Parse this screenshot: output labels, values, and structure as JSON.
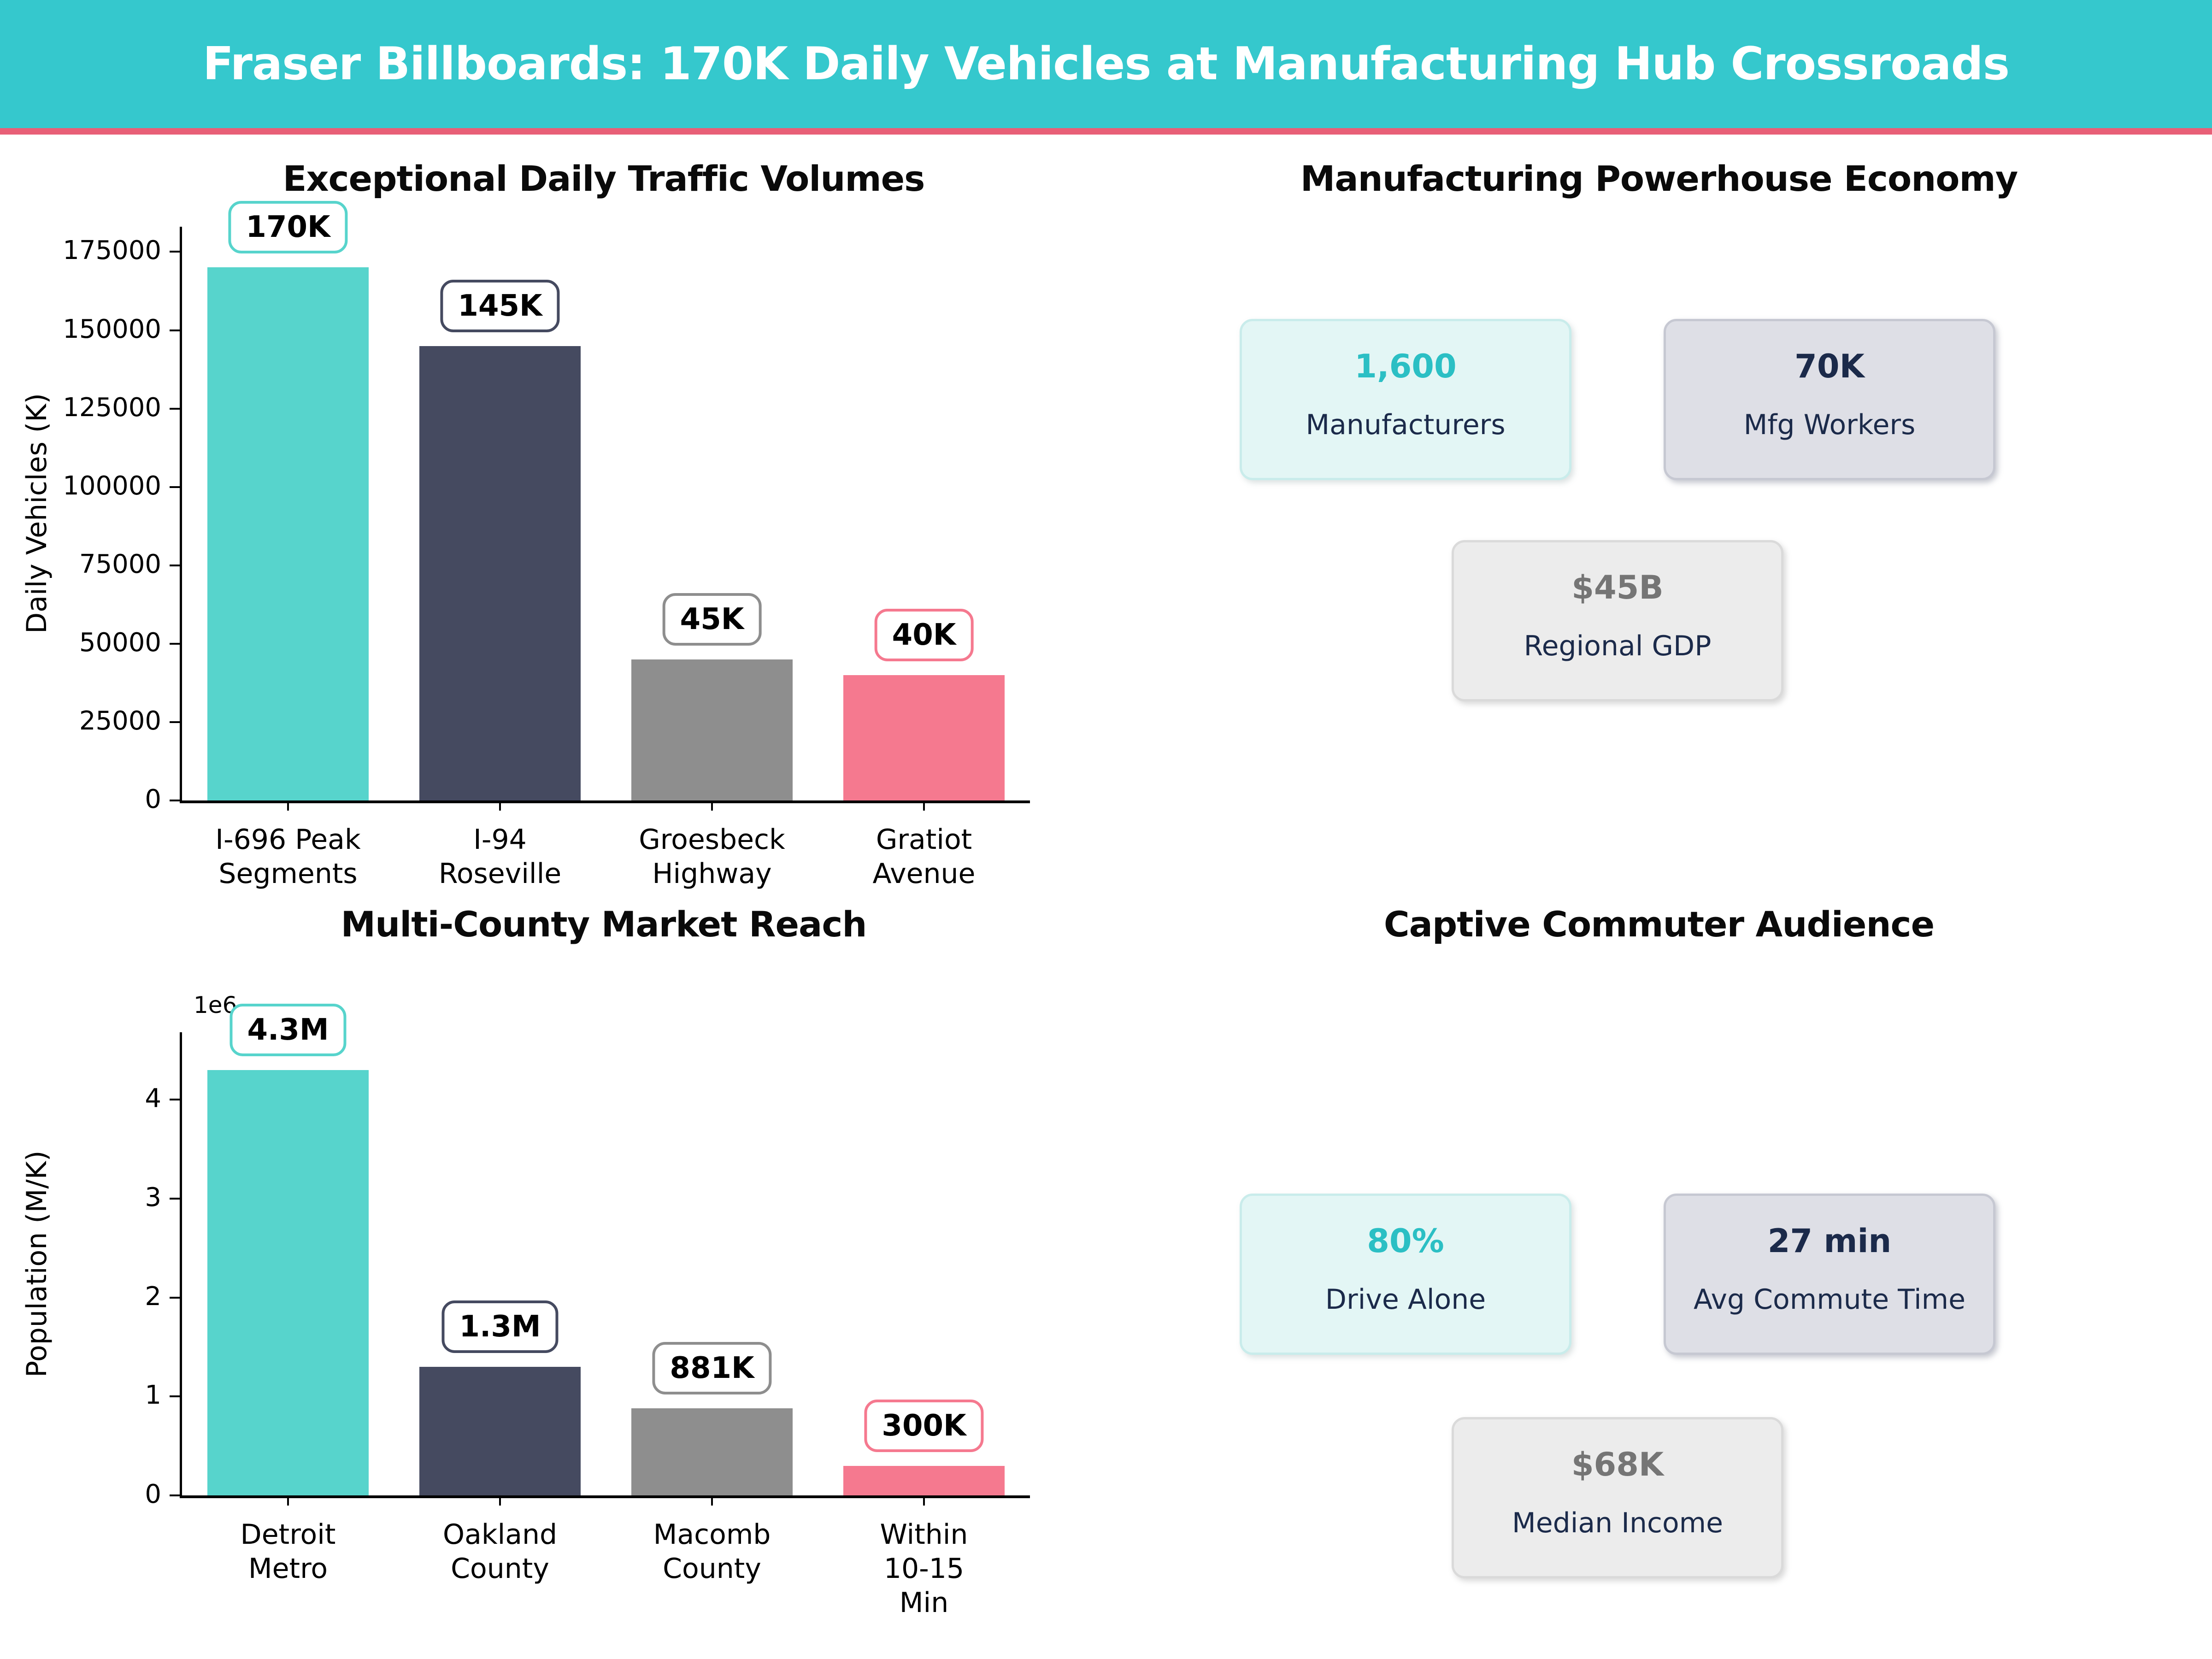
{
  "header": {
    "title": "Fraser Billboards: 170K Daily Vehicles at Manufacturing Hub Crossroads"
  },
  "colors": {
    "header_bg": "#35C8CD",
    "header_accent": "#E85F77",
    "bar_teal": "#57D4CC",
    "bar_navy": "#454A60",
    "bar_gray": "#8E8E8E",
    "bar_pink": "#F5798F",
    "teal_text": "#2BBFC4",
    "navy_text": "#1B2A4A",
    "gray_text": "#757575"
  },
  "chart_data": [
    {
      "type": "bar",
      "title": "Exceptional Daily Traffic Volumes",
      "xlabel": "",
      "ylabel": "Daily Vehicles (K)",
      "categories": [
        "I-696 Peak Segments",
        "I-94 Roseville",
        "Groesbeck Highway",
        "Gratiot Avenue"
      ],
      "categories_lines": [
        [
          "I-696 Peak",
          "Segments"
        ],
        [
          "I-94",
          "Roseville"
        ],
        [
          "Groesbeck",
          "Highway"
        ],
        [
          "Gratiot",
          "Avenue"
        ]
      ],
      "values": [
        170000,
        145000,
        45000,
        40000
      ],
      "bar_labels": [
        "170K",
        "145K",
        "45K",
        "40K"
      ],
      "bar_colors": [
        "#57D4CC",
        "#454A60",
        "#8E8E8E",
        "#F5798F"
      ],
      "yticks": [
        0,
        25000,
        50000,
        75000,
        100000,
        125000,
        150000,
        175000
      ],
      "ytick_labels": [
        "0",
        "25000",
        "50000",
        "75000",
        "100000",
        "125000",
        "150000",
        "175000"
      ],
      "ylim": [
        0,
        183000
      ],
      "grid": false,
      "legend": "none"
    },
    {
      "type": "bar",
      "title": "Multi-County Market Reach",
      "xlabel": "",
      "ylabel": "Population (M/K)",
      "offset_label": "1e6",
      "categories": [
        "Detroit Metro",
        "Oakland County",
        "Macomb County",
        "Within 10-15 Min"
      ],
      "categories_lines": [
        [
          "Detroit",
          "Metro"
        ],
        [
          "Oakland",
          "County"
        ],
        [
          "Macomb",
          "County"
        ],
        [
          "Within 10-15",
          "Min"
        ]
      ],
      "values": [
        4300000,
        1300000,
        881000,
        300000
      ],
      "bar_labels": [
        "4.3M",
        "1.3M",
        "881K",
        "300K"
      ],
      "bar_colors": [
        "#57D4CC",
        "#454A60",
        "#8E8E8E",
        "#F5798F"
      ],
      "yticks": [
        0,
        1000000,
        2000000,
        3000000,
        4000000
      ],
      "ytick_labels": [
        "0",
        "1",
        "2",
        "3",
        "4"
      ],
      "ylim": [
        0,
        4680000
      ],
      "grid": false,
      "legend": "none"
    }
  ],
  "panels": [
    {
      "title": "Manufacturing Powerhouse Economy",
      "cards": [
        {
          "value": "1,600",
          "label": "Manufacturers",
          "variant": "mint"
        },
        {
          "value": "70K",
          "label": "Mfg Workers",
          "variant": "lavender"
        },
        {
          "value": "$45B",
          "label": "Regional GDP",
          "variant": "gray"
        }
      ]
    },
    {
      "title": "Captive Commuter Audience",
      "cards": [
        {
          "value": "80%",
          "label": "Drive Alone",
          "variant": "mint"
        },
        {
          "value": "27 min",
          "label": "Avg Commute Time",
          "variant": "lavender"
        },
        {
          "value": "$68K",
          "label": "Median Income",
          "variant": "gray"
        }
      ]
    }
  ]
}
